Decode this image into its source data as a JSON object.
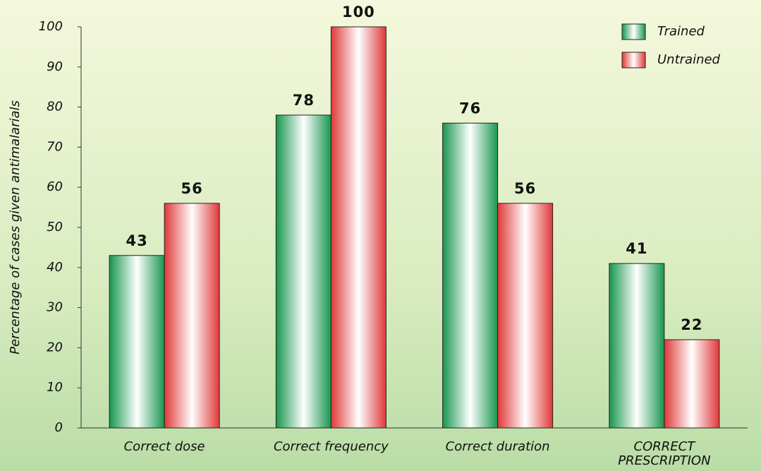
{
  "chart_data": {
    "type": "bar",
    "y_axis_label": "Percentage of cases given antimalarials",
    "categories": [
      "Correct dose",
      "Correct frequency",
      "Correct duration",
      "CORRECT PRESCRIPTION"
    ],
    "series": [
      {
        "name": "Trained",
        "color": "#17964e",
        "values": [
          43,
          78,
          76,
          41
        ]
      },
      {
        "name": "Untrained",
        "color": "#e03838",
        "values": [
          56,
          100,
          56,
          22
        ]
      }
    ],
    "ylim": [
      0,
      100
    ],
    "yticks": [
      0,
      10,
      20,
      30,
      40,
      50,
      60,
      70,
      80,
      90,
      100
    ],
    "legend": "upper right"
  }
}
